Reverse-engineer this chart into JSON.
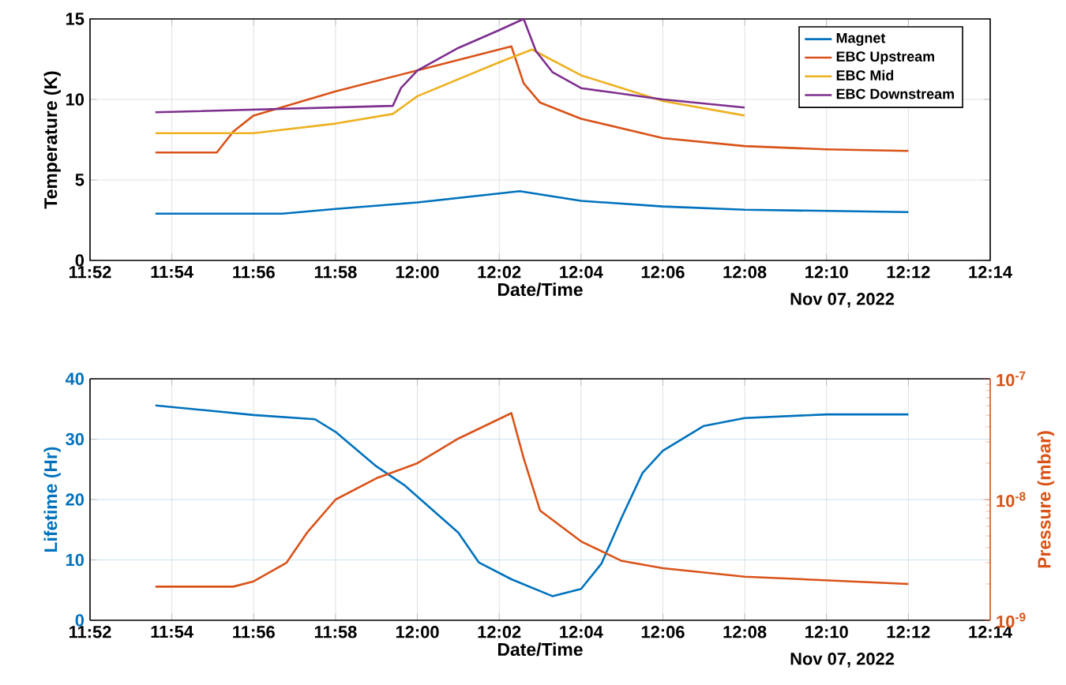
{
  "chart_data": [
    {
      "type": "line",
      "xlabel": "Date/Time",
      "ylabel": "Temperature (K)",
      "annotations": [
        "Nov 07, 2022"
      ],
      "xlim": [
        11.866667,
        12.233333
      ],
      "ylim": [
        0,
        15
      ],
      "yticks": [
        0,
        5,
        10,
        15
      ],
      "xticks": [
        {
          "value": 11.866667,
          "label": "11:52"
        },
        {
          "value": 11.9,
          "label": "11:54"
        },
        {
          "value": 11.933333,
          "label": "11:56"
        },
        {
          "value": 11.966667,
          "label": "11:58"
        },
        {
          "value": 12.0,
          "label": "12:00"
        },
        {
          "value": 12.033333,
          "label": "12:02"
        },
        {
          "value": 12.066667,
          "label": "12:04"
        },
        {
          "value": 12.1,
          "label": "12:06"
        },
        {
          "value": 12.133333,
          "label": "12:08"
        },
        {
          "value": 12.166667,
          "label": "12:10"
        },
        {
          "value": 12.2,
          "label": "12:12"
        },
        {
          "value": 12.233333,
          "label": "12:14"
        }
      ],
      "grid": true,
      "legend": "top right",
      "line_style": "solid",
      "marker": "none",
      "series": [
        {
          "name": "Magnet",
          "color": "#0072bd",
          "x": [
            11.8933,
            11.945,
            11.9667,
            12.0,
            12.0417,
            12.0667,
            12.1,
            12.1333,
            12.2
          ],
          "values": [
            2.9,
            2.9,
            3.2,
            3.6,
            4.3,
            3.7,
            3.35,
            3.15,
            3.0
          ]
        },
        {
          "name": "EBC Upstream",
          "color": "#d95319",
          "x": [
            11.8933,
            11.9183,
            11.925,
            11.9333,
            11.9667,
            12.0,
            12.0383,
            12.0433,
            12.05,
            12.0667,
            12.1,
            12.1333,
            12.1667,
            12.2
          ],
          "values": [
            6.7,
            6.7,
            8.0,
            9.0,
            10.5,
            11.8,
            13.3,
            11.0,
            9.8,
            8.8,
            7.6,
            7.1,
            6.9,
            6.8
          ]
        },
        {
          "name": "EBC Mid",
          "color": "#edb120",
          "x": [
            11.8933,
            11.9333,
            11.9667,
            11.99,
            12.0,
            12.0333,
            12.0467,
            12.0667,
            12.1,
            12.1333
          ],
          "values": [
            7.9,
            7.9,
            8.5,
            9.1,
            10.2,
            12.3,
            13.1,
            11.5,
            9.9,
            9.0
          ]
        },
        {
          "name": "EBC Downstream",
          "color": "#7e2f8e",
          "x": [
            11.8933,
            11.99,
            11.9933,
            12.0,
            12.0167,
            12.0333,
            12.0433,
            12.0483,
            12.055,
            12.0667,
            12.1,
            12.1333
          ],
          "values": [
            9.2,
            9.6,
            10.7,
            11.8,
            13.2,
            14.3,
            15.0,
            13.0,
            11.7,
            10.7,
            10.0,
            9.5
          ]
        }
      ]
    },
    {
      "type": "line",
      "xlabel": "Date/Time",
      "ylabel": "Lifetime (Hr)",
      "y2label": "Pressure (mbar)",
      "annotations": [
        "Nov 07, 2022"
      ],
      "xlim": [
        11.866667,
        12.233333
      ],
      "ylim": [
        0,
        40
      ],
      "yticks": [
        0,
        10,
        20,
        30,
        40
      ],
      "y2lim": [
        1e-09,
        1e-07
      ],
      "log": "y2",
      "y2ticks": [
        {
          "value": 1e-09,
          "label": "10$^{-9}$"
        },
        {
          "value": 1e-08,
          "label": "10$^{-8}$"
        },
        {
          "value": 1e-07,
          "label": "10$^{-7}$"
        }
      ],
      "xticks": [
        {
          "value": 11.866667,
          "label": "11:52"
        },
        {
          "value": 11.9,
          "label": "11:54"
        },
        {
          "value": 11.933333,
          "label": "11:56"
        },
        {
          "value": 11.966667,
          "label": "11:58"
        },
        {
          "value": 12.0,
          "label": "12:00"
        },
        {
          "value": 12.033333,
          "label": "12:02"
        },
        {
          "value": 12.066667,
          "label": "12:04"
        },
        {
          "value": 12.1,
          "label": "12:06"
        },
        {
          "value": 12.133333,
          "label": "12:08"
        },
        {
          "value": 12.166667,
          "label": "12:10"
        },
        {
          "value": 12.2,
          "label": "12:12"
        },
        {
          "value": 12.233333,
          "label": "12:14"
        }
      ],
      "grid": true,
      "line_style": "solid",
      "marker": "none",
      "series": [
        {
          "color": "#0072bd",
          "x": [
            11.8933,
            11.9333,
            11.9583,
            11.9667,
            11.9833,
            11.995,
            12.0167,
            12.025,
            12.0383,
            12.055,
            12.0667,
            12.075,
            12.0833,
            12.0917,
            12.1,
            12.1167,
            12.1333,
            12.1667,
            12.2
          ],
          "values": [
            35.6,
            34.0,
            33.3,
            31.2,
            25.5,
            22.3,
            14.5,
            9.6,
            6.8,
            4.0,
            5.2,
            9.4,
            17.1,
            24.4,
            28.1,
            32.2,
            33.5,
            34.1,
            34.1
          ]
        },
        {
          "color": "#d95319",
          "axis": "y2",
          "x": [
            11.8933,
            11.925,
            11.9333,
            11.9467,
            11.955,
            11.9667,
            11.9833,
            12.0,
            12.0167,
            12.0383,
            12.0433,
            12.05,
            12.0667,
            12.0833,
            12.1,
            12.1333,
            12.2
          ],
          "values": [
            1.9e-09,
            1.9e-09,
            2.1e-09,
            3e-09,
            5.3e-09,
            1e-08,
            1.5e-08,
            2e-08,
            3.2e-08,
            5.2e-08,
            2.2e-08,
            8.1e-09,
            4.5e-09,
            3.1e-09,
            2.7e-09,
            2.3e-09,
            2e-09
          ]
        }
      ]
    }
  ]
}
